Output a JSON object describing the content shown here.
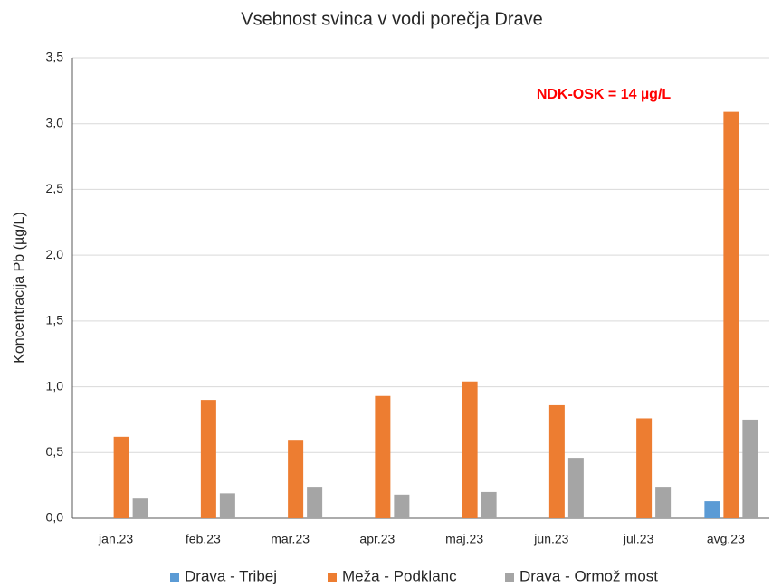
{
  "chart_data": {
    "type": "bar",
    "title": "Vsebnost svinca v vodi porečja Drave",
    "y_label": "Koncentracija Pb (µg/L)",
    "annotation": "NDK-OSK = 14 µg/L",
    "categories": [
      "jan.23",
      "feb.23",
      "mar.23",
      "apr.23",
      "maj.23",
      "jun.23",
      "jul.23",
      "avg.23"
    ],
    "series": [
      {
        "name": "Drava - Tribej",
        "color": "#5b9bd5",
        "values": [
          null,
          null,
          null,
          null,
          null,
          null,
          null,
          0.13
        ]
      },
      {
        "name": "Meža - Podklanc",
        "color": "#ed7d31",
        "values": [
          0.62,
          0.9,
          0.59,
          0.93,
          1.04,
          0.86,
          0.76,
          3.09
        ]
      },
      {
        "name": "Drava - Ormož most",
        "color": "#a5a5a5",
        "values": [
          0.15,
          0.19,
          0.24,
          0.18,
          0.2,
          0.46,
          0.24,
          0.75
        ]
      }
    ],
    "ylim": [
      0,
      3.5
    ],
    "yticks": [
      {
        "value": 0,
        "label": "0,0"
      },
      {
        "value": 0.5,
        "label": "0,5"
      },
      {
        "value": 1,
        "label": "1,0"
      },
      {
        "value": 1.5,
        "label": "1,5"
      },
      {
        "value": 2,
        "label": "2,0"
      },
      {
        "value": 2.5,
        "label": "2,5"
      },
      {
        "value": 3,
        "label": "3,0"
      },
      {
        "value": 3.5,
        "label": "3,5"
      }
    ],
    "grid": true,
    "legend": "bottom"
  }
}
